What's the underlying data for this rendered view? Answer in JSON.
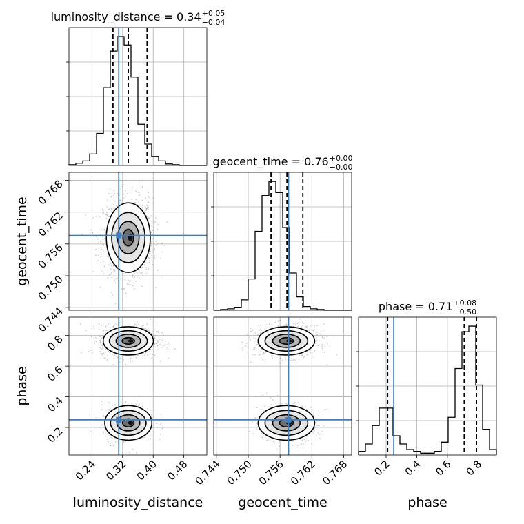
{
  "chart_data": {
    "type": "corner",
    "parameters": [
      "luminosity_distance",
      "geocent_time",
      "phase"
    ],
    "titles": [
      {
        "param": "luminosity_distance",
        "label": "luminosity_distance = 0.34",
        "median": 0.34,
        "plus": "+0.05",
        "minus": "−0.04"
      },
      {
        "param": "geocent_time",
        "label": "geocent_time = 0.76",
        "median": 0.76,
        "plus": "+0.00",
        "minus": "−0.00"
      },
      {
        "param": "phase",
        "label": "phase = 0.71",
        "median": 0.71,
        "plus": "+0.08",
        "minus": "−0.50"
      }
    ],
    "axes": {
      "luminosity_distance": {
        "range": [
          0.18,
          0.54
        ],
        "ticks": [
          "0.24",
          "0.32",
          "0.40",
          "0.48"
        ]
      },
      "geocent_time": {
        "range": [
          0.7435,
          0.7695
        ],
        "ticks": [
          "0.744",
          "0.750",
          "0.756",
          "0.762",
          "0.768"
        ]
      },
      "phase": {
        "range": [
          0.02,
          0.92
        ],
        "ticks_x": [
          "0.2",
          "0.4",
          "0.6",
          "0.8"
        ],
        "ticks_y": [
          "0.2",
          "0.4",
          "0.6",
          "0.8"
        ]
      }
    },
    "truths": {
      "luminosity_distance": 0.31,
      "geocent_time": 0.7576,
      "phase": 0.25
    },
    "quantiles": {
      "luminosity_distance": [
        0.295,
        0.335,
        0.384
      ],
      "geocent_time": [
        0.7543,
        0.7573,
        0.7603
      ],
      "phase": [
        0.21,
        0.71,
        0.79
      ]
    },
    "histograms": {
      "luminosity_distance": {
        "edges_start": 0.18,
        "bin_width": 0.018,
        "counts": [
          1,
          3,
          6,
          15,
          42,
          102,
          150,
          169,
          158,
          116,
          54,
          28,
          12,
          6,
          2,
          1,
          0,
          0,
          0,
          0
        ]
      },
      "geocent_time": {
        "edges_start": 0.7435,
        "bin_width": 0.0013,
        "counts": [
          0,
          1,
          2,
          4,
          14,
          42,
          106,
          154,
          173,
          158,
          111,
          50,
          18,
          5,
          2,
          1,
          0,
          0,
          0,
          0
        ]
      },
      "phase": {
        "edges_start": 0.02,
        "bin_width": 0.045,
        "counts": [
          4,
          12,
          32,
          51,
          51,
          21,
          12,
          6,
          4,
          2,
          2,
          4,
          14,
          41,
          94,
          134,
          140,
          76,
          28,
          6
        ]
      }
    },
    "grid": true
  }
}
